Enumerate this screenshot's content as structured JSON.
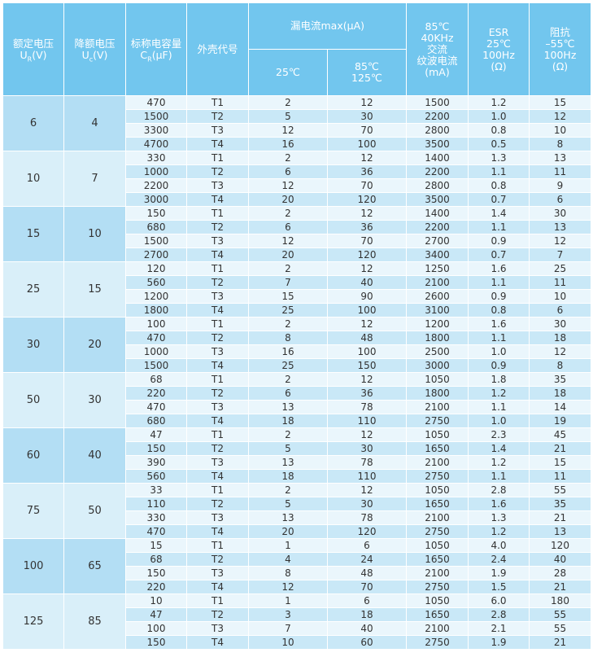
{
  "headers": {
    "rated_voltage": "额定电压",
    "rated_voltage_symbol": "U",
    "rated_voltage_sub": "R",
    "rated_voltage_unit": "(V)",
    "derated_voltage": "降额电压",
    "derated_voltage_symbol": "U",
    "derated_voltage_sub": "c",
    "derated_voltage_unit": "(V)",
    "capacitance": "标称电容量",
    "capacitance_symbol": "C",
    "capacitance_sub": "R",
    "capacitance_unit": "(μF)",
    "case_code": "外壳代号",
    "leakage": "漏电流max(μA)",
    "leakage_25": "25℃",
    "leakage_85_line1": "85℃",
    "leakage_85_line2": "125℃",
    "ripple_line1": "85℃",
    "ripple_line2": "40KHz",
    "ripple_line3": "交流",
    "ripple_line4": "纹波电流",
    "ripple_line5": "(mA)",
    "esr_line1": "ESR",
    "esr_line2": "25℃",
    "esr_line3": "100Hz",
    "esr_line4": "(Ω)",
    "imp_line1": "阻抗",
    "imp_line2": "–55℃",
    "imp_line3": "100Hz",
    "imp_line4": "(Ω)"
  },
  "groups": [
    {
      "voltage": "6",
      "derated": "4",
      "rows": [
        [
          "470",
          "T1",
          "2",
          "12",
          "1500",
          "1.2",
          "15"
        ],
        [
          "1500",
          "T2",
          "5",
          "30",
          "2200",
          "1.0",
          "12"
        ],
        [
          "3300",
          "T3",
          "12",
          "70",
          "2800",
          "0.8",
          "10"
        ],
        [
          "4700",
          "T4",
          "16",
          "100",
          "3500",
          "0.5",
          "8"
        ]
      ]
    },
    {
      "voltage": "10",
      "derated": "7",
      "rows": [
        [
          "330",
          "T1",
          "2",
          "12",
          "1400",
          "1.3",
          "13"
        ],
        [
          "1000",
          "T2",
          "6",
          "36",
          "2200",
          "1.1",
          "11"
        ],
        [
          "2200",
          "T3",
          "12",
          "70",
          "2800",
          "0.8",
          "9"
        ],
        [
          "3000",
          "T4",
          "20",
          "120",
          "3500",
          "0.7",
          "6"
        ]
      ]
    },
    {
      "voltage": "15",
      "derated": "10",
      "rows": [
        [
          "150",
          "T1",
          "2",
          "12",
          "1400",
          "1.4",
          "30"
        ],
        [
          "680",
          "T2",
          "6",
          "36",
          "2200",
          "1.1",
          "13"
        ],
        [
          "1500",
          "T3",
          "12",
          "70",
          "2700",
          "0.9",
          "12"
        ],
        [
          "2700",
          "T4",
          "20",
          "120",
          "3400",
          "0.7",
          "7"
        ]
      ]
    },
    {
      "voltage": "25",
      "derated": "15",
      "rows": [
        [
          "120",
          "T1",
          "2",
          "12",
          "1250",
          "1.6",
          "25"
        ],
        [
          "560",
          "T2",
          "7",
          "40",
          "2100",
          "1.1",
          "11"
        ],
        [
          "1200",
          "T3",
          "15",
          "90",
          "2600",
          "0.9",
          "10"
        ],
        [
          "1800",
          "T4",
          "25",
          "100",
          "3100",
          "0.8",
          "6"
        ]
      ]
    },
    {
      "voltage": "30",
      "derated": "20",
      "rows": [
        [
          "100",
          "T1",
          "2",
          "12",
          "1200",
          "1.6",
          "30"
        ],
        [
          "470",
          "T2",
          "8",
          "48",
          "1800",
          "1.1",
          "18"
        ],
        [
          "1000",
          "T3",
          "16",
          "100",
          "2500",
          "1.0",
          "12"
        ],
        [
          "1500",
          "T4",
          "25",
          "150",
          "3000",
          "0.9",
          "8"
        ]
      ]
    },
    {
      "voltage": "50",
      "derated": "30",
      "rows": [
        [
          "68",
          "T1",
          "2",
          "12",
          "1050",
          "1.8",
          "35"
        ],
        [
          "220",
          "T2",
          "6",
          "36",
          "1800",
          "1.2",
          "18"
        ],
        [
          "470",
          "T3",
          "13",
          "78",
          "2100",
          "1.1",
          "14"
        ],
        [
          "680",
          "T4",
          "18",
          "110",
          "2750",
          "1.0",
          "19"
        ]
      ]
    },
    {
      "voltage": "60",
      "derated": "40",
      "rows": [
        [
          "47",
          "T1",
          "2",
          "12",
          "1050",
          "2.3",
          "45"
        ],
        [
          "150",
          "T2",
          "5",
          "30",
          "1650",
          "1.4",
          "21"
        ],
        [
          "390",
          "T3",
          "13",
          "78",
          "2100",
          "1.2",
          "15"
        ],
        [
          "560",
          "T4",
          "18",
          "110",
          "2750",
          "1.1",
          "11"
        ]
      ]
    },
    {
      "voltage": "75",
      "derated": "50",
      "rows": [
        [
          "33",
          "T1",
          "2",
          "12",
          "1050",
          "2.8",
          "55"
        ],
        [
          "110",
          "T2",
          "5",
          "30",
          "1650",
          "1.6",
          "35"
        ],
        [
          "330",
          "T3",
          "13",
          "78",
          "2100",
          "1.3",
          "21"
        ],
        [
          "470",
          "T4",
          "20",
          "120",
          "2750",
          "1.2",
          "13"
        ]
      ]
    },
    {
      "voltage": "100",
      "derated": "65",
      "rows": [
        [
          "15",
          "T1",
          "1",
          "6",
          "1050",
          "4.0",
          "120"
        ],
        [
          "68",
          "T2",
          "4",
          "24",
          "1650",
          "2.4",
          "40"
        ],
        [
          "150",
          "T3",
          "8",
          "48",
          "2100",
          "1.9",
          "28"
        ],
        [
          "220",
          "T4",
          "12",
          "70",
          "2750",
          "1.5",
          "21"
        ]
      ]
    },
    {
      "voltage": "125",
      "derated": "85",
      "rows": [
        [
          "10",
          "T1",
          "1",
          "6",
          "1050",
          "6.0",
          "180"
        ],
        [
          "47",
          "T2",
          "3",
          "18",
          "1650",
          "2.8",
          "55"
        ],
        [
          "100",
          "T3",
          "7",
          "40",
          "2100",
          "2.1",
          "55"
        ],
        [
          "150",
          "T4",
          "10",
          "60",
          "2750",
          "1.9",
          "21"
        ]
      ]
    }
  ]
}
